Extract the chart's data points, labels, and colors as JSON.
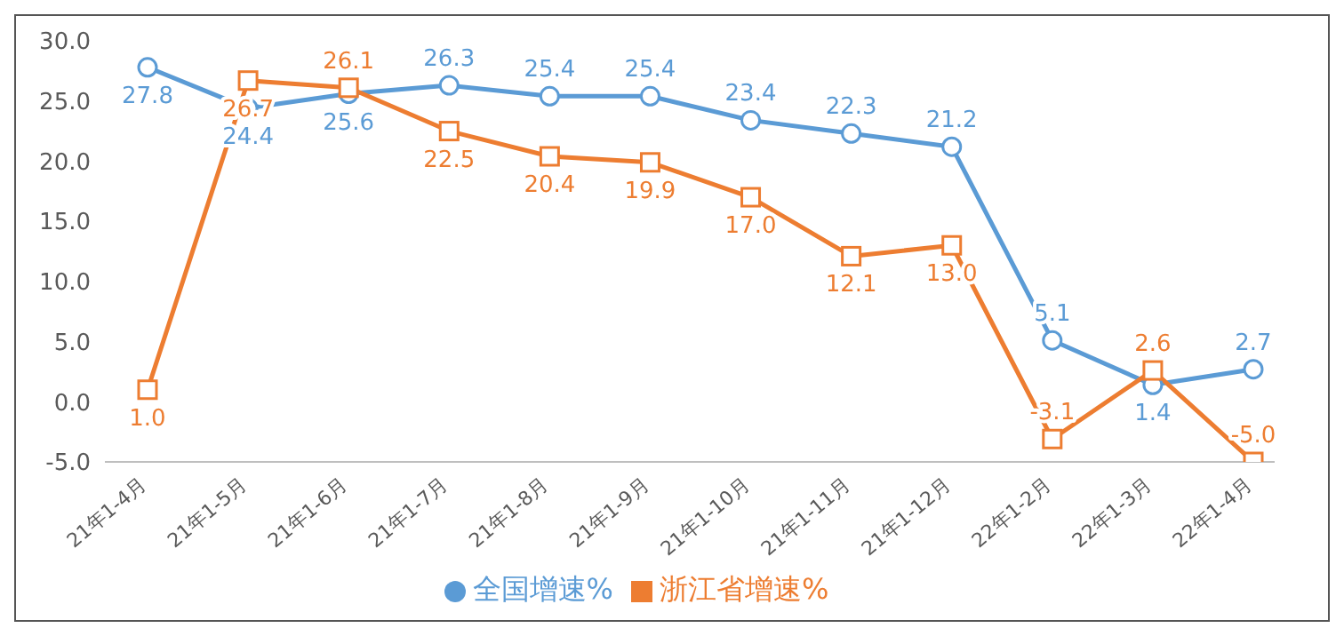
{
  "chart_data": {
    "type": "line",
    "categories": [
      "21年1-4月",
      "21年1-5月",
      "21年1-6月",
      "21年1-7月",
      "21年1-8月",
      "21年1-9月",
      "21年1-10月",
      "21年1-11月",
      "21年1-12月",
      "22年1-2月",
      "22年1-3月",
      "22年1-4月"
    ],
    "series": [
      {
        "name": "全国增速%",
        "color": "#5b9bd5",
        "marker": "circle",
        "values": [
          27.8,
          24.4,
          25.6,
          26.3,
          25.4,
          25.4,
          23.4,
          22.3,
          21.2,
          5.1,
          1.4,
          2.7
        ],
        "value_labels": [
          "27.8",
          "24.4",
          "25.6",
          "26.3",
          "25.4",
          "25.4",
          "23.4",
          "22.3",
          "21.2",
          "5.1",
          "1.4",
          "2.7"
        ]
      },
      {
        "name": "浙江省增速%",
        "color": "#ed7d31",
        "marker": "square",
        "values": [
          1.0,
          26.7,
          26.1,
          22.5,
          20.4,
          19.9,
          17.0,
          12.1,
          13.0,
          -3.1,
          2.6,
          -5.0
        ],
        "value_labels": [
          "1.0",
          "26.7",
          "26.1",
          "22.5",
          "20.4",
          "19.9",
          "17.0",
          "12.1",
          "13.0",
          "-3.1",
          "2.6",
          "-5.0"
        ]
      }
    ],
    "ylim": [
      -5,
      30
    ],
    "yticks": [
      {
        "value": -5,
        "label": "-5.0"
      },
      {
        "value": 0,
        "label": "0.0"
      },
      {
        "value": 5,
        "label": "5.0"
      },
      {
        "value": 10,
        "label": "10.0"
      },
      {
        "value": 15,
        "label": "15.0"
      },
      {
        "value": 20,
        "label": "20.0"
      },
      {
        "value": 25,
        "label": "25.0"
      },
      {
        "value": 30,
        "label": "30.0"
      }
    ],
    "grid": false,
    "legend": "bottom",
    "line_style": "solid"
  }
}
